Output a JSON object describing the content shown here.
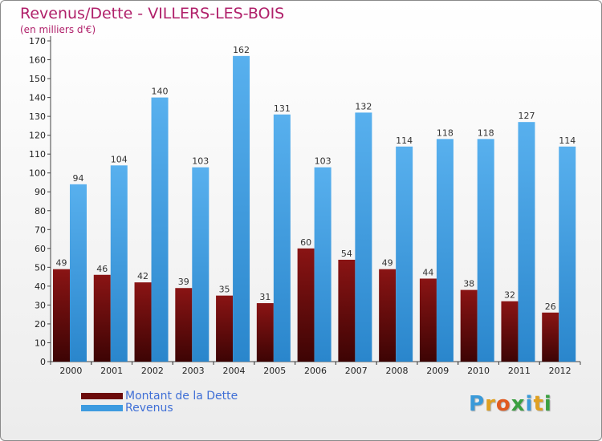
{
  "header": {
    "title": "Revenus/Dette - VILLERS-LES-BOIS",
    "subtitle": "(en milliers d'€)"
  },
  "chart_data": {
    "type": "bar",
    "title": "Revenus/Dette - VILLERS-LES-BOIS",
    "ylabel": "(en milliers d'€)",
    "xlabel": "",
    "ylim": [
      0,
      170
    ],
    "ytick_step": 10,
    "grid": false,
    "legend_position": "bottom-left",
    "categories": [
      "2000",
      "2001",
      "2002",
      "2003",
      "2004",
      "2005",
      "2006",
      "2007",
      "2008",
      "2009",
      "2010",
      "2011",
      "2012"
    ],
    "series": [
      {
        "name": "Montant de la Dette",
        "color": "#7a0f0f",
        "values": [
          49,
          46,
          42,
          39,
          35,
          31,
          60,
          54,
          49,
          44,
          38,
          32,
          26
        ]
      },
      {
        "name": "Revenus",
        "color": "#3d9be0",
        "values": [
          94,
          104,
          140,
          103,
          162,
          131,
          103,
          132,
          114,
          118,
          118,
          127,
          114
        ]
      }
    ]
  },
  "legend": {
    "items": [
      {
        "label": "Montant de la Dette",
        "color": "#6b0a0a"
      },
      {
        "label": "Revenus",
        "color": "#3d9be0"
      }
    ]
  },
  "logo": {
    "letters": [
      "P",
      "r",
      "o",
      "x",
      "i",
      "t",
      "i"
    ],
    "colors": [
      "#3a9ad9",
      "#e0a020",
      "#e05a20",
      "#3aa040",
      "#3a9ad9",
      "#e0a020",
      "#3aa040"
    ]
  }
}
